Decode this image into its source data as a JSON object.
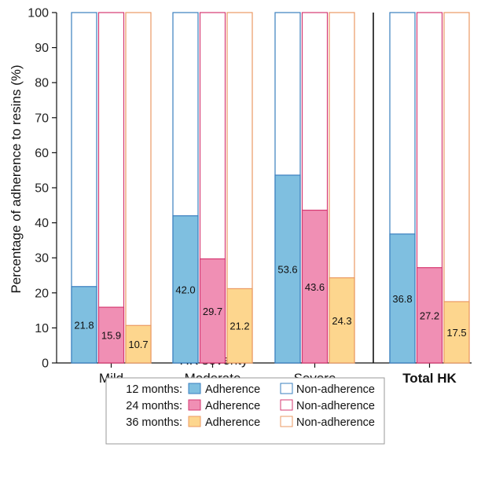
{
  "chart_data": {
    "type": "bar",
    "subtype": "stacked-100",
    "categories": [
      "Mild",
      "Moderate",
      "Severe",
      "Total HK"
    ],
    "xlabel": "HK severity",
    "ylabel": "Percentage of adherence to resins (%)",
    "ylim": [
      0,
      100
    ],
    "yticks": [
      0,
      10,
      20,
      30,
      40,
      50,
      60,
      70,
      80,
      90,
      100
    ],
    "grid": false,
    "divider_before_category": "Total HK",
    "series": [
      {
        "name": "12 months",
        "values": [
          21.8,
          42.0,
          53.6,
          36.8
        ],
        "color": "#7fbfe0",
        "edge": "#3a7fbf"
      },
      {
        "name": "24 months",
        "values": [
          15.9,
          29.7,
          43.6,
          27.2
        ],
        "color": "#f08fb4",
        "edge": "#d63a72"
      },
      {
        "name": "36 months",
        "values": [
          10.7,
          21.2,
          24.3,
          17.5
        ],
        "color": "#fdd68e",
        "edge": "#eb9a63"
      }
    ],
    "value_labels": [
      [
        "21.8",
        "42.0",
        "53.6",
        "36.8"
      ],
      [
        "15.9",
        "29.7",
        "43.6",
        "27.2"
      ],
      [
        "10.7",
        "21.2",
        "24.3",
        "17.5"
      ]
    ],
    "legend": {
      "placement": "bottom-center",
      "rows": [
        {
          "period": "12 months:",
          "adherence": "Adherence",
          "non_adherence": "Non-adherence"
        },
        {
          "period": "24 months:",
          "adherence": "Adherence",
          "non_adherence": "Non-adherence"
        },
        {
          "period": "36 months:",
          "adherence": "Adherence",
          "non_adherence": "Non-adherence"
        }
      ]
    }
  }
}
